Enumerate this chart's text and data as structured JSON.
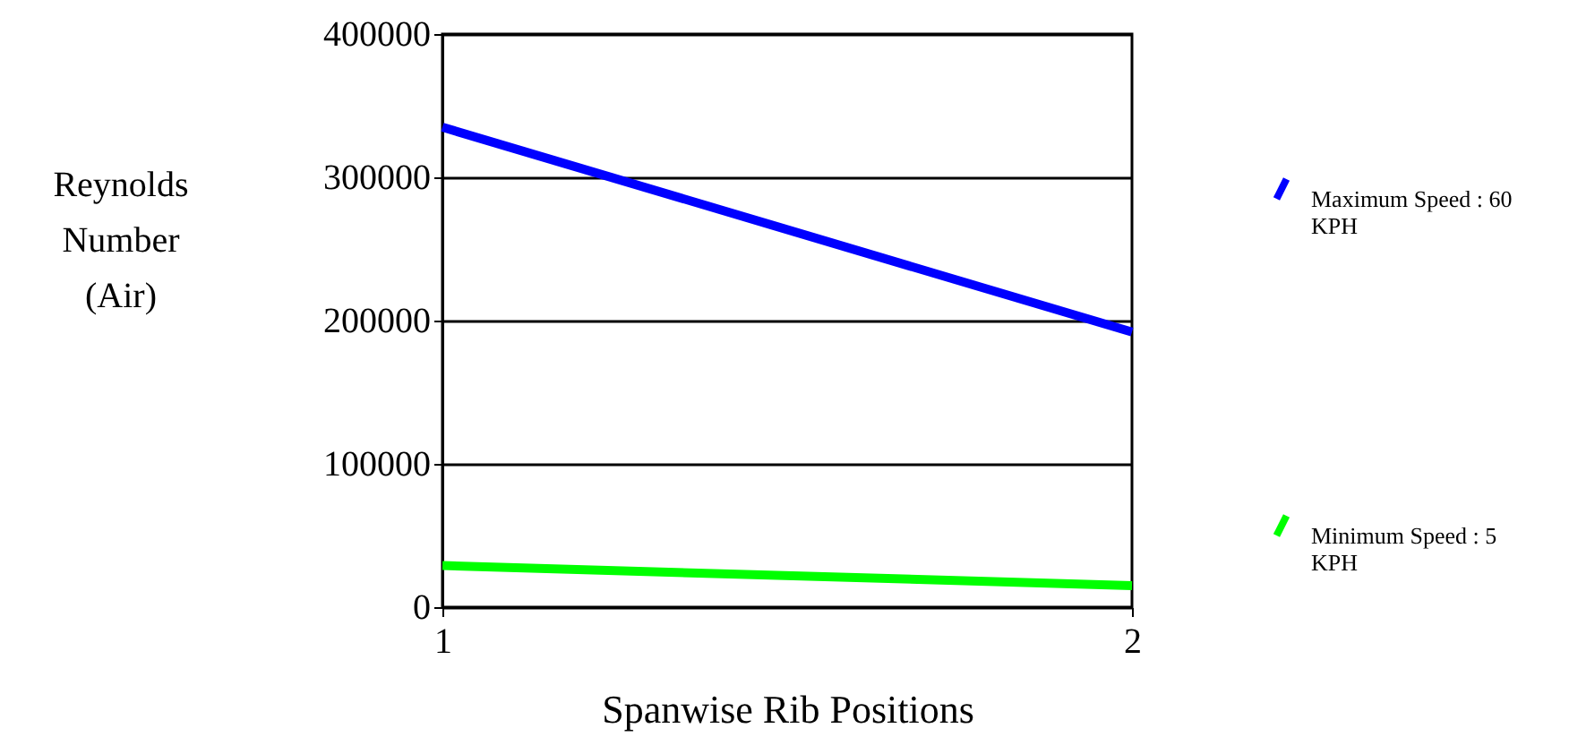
{
  "chart_data": {
    "type": "line",
    "xlabel": "Spanwise Rib Positions",
    "ylabel": "Reynolds Number (Air)",
    "x": [
      1,
      2
    ],
    "series": [
      {
        "name": "Maximum Speed : 60 KPH",
        "color": "#0000ff",
        "values": [
          335000,
          192000
        ]
      },
      {
        "name": "Minimum Speed : 5 KPH",
        "color": "#00ff00",
        "values": [
          29000,
          15000
        ]
      }
    ],
    "xlim": [
      1,
      2
    ],
    "xticks": [
      1,
      2
    ],
    "ylim": [
      0,
      400000
    ],
    "yticks": [
      0,
      100000,
      200000,
      300000,
      400000
    ],
    "grid": "y",
    "legend": "right",
    "marker": "none",
    "line_style": "solid"
  }
}
